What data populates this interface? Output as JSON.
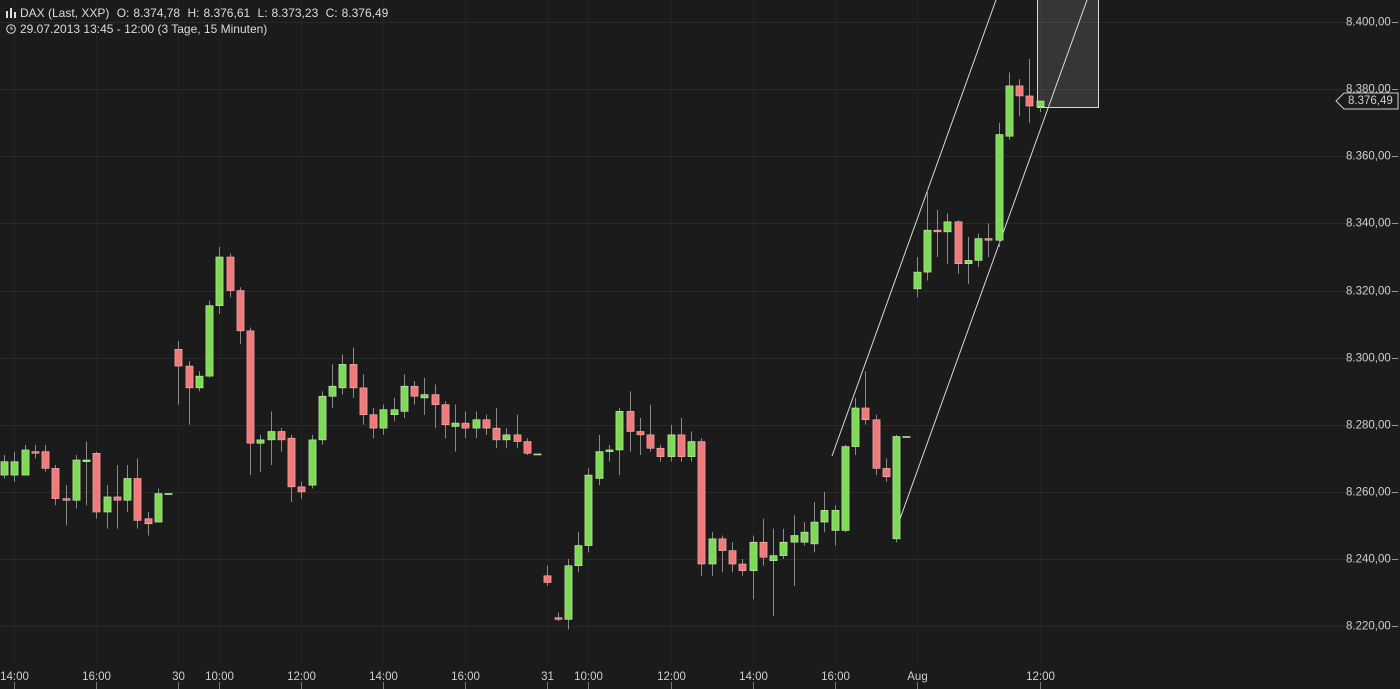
{
  "chart_data": {
    "type": "candlestick",
    "title": "DAX (Last, XXP)",
    "ohlc": [
      {
        "label": "O:",
        "text": "8.374,78"
      },
      {
        "label": "H:",
        "text": "8.376,61"
      },
      {
        "label": "L:",
        "text": "8.373,23"
      },
      {
        "label": "C:",
        "text": "8.376,49"
      }
    ],
    "subtitle": "29.07.2013 13:45 - 12:00 (3 Tage, 15 Minuten)",
    "up_color": "#7ed957",
    "down_color": "#f07a7a",
    "grid": true,
    "ylim": [
      8208.7,
      8406.6
    ],
    "yticks": [
      {
        "value": 8220,
        "label": "8.220,00"
      },
      {
        "value": 8240,
        "label": "8.240,00"
      },
      {
        "value": 8260,
        "label": "8.260,00"
      },
      {
        "value": 8280,
        "label": "8.280,00"
      },
      {
        "value": 8300,
        "label": "8.300,00"
      },
      {
        "value": 8320,
        "label": "8.320,00"
      },
      {
        "value": 8340,
        "label": "8.340,00"
      },
      {
        "value": 8360,
        "label": "8.360,00"
      },
      {
        "value": 8380,
        "label": "8.380,00"
      },
      {
        "value": 8400,
        "label": "8.400,00"
      }
    ],
    "xlim": [
      -0.4,
      130.3
    ],
    "xticks": [
      {
        "value": 1,
        "label": "14:00"
      },
      {
        "value": 9,
        "label": "16:00"
      },
      {
        "value": 17,
        "label": "30"
      },
      {
        "value": 21,
        "label": "10:00"
      },
      {
        "value": 29,
        "label": "12:00"
      },
      {
        "value": 37,
        "label": "14:00"
      },
      {
        "value": 45,
        "label": "16:00"
      },
      {
        "value": 53,
        "label": "31"
      },
      {
        "value": 57,
        "label": "10:00"
      },
      {
        "value": 65,
        "label": "12:00"
      },
      {
        "value": 73,
        "label": "14:00"
      },
      {
        "value": 81,
        "label": "16:00"
      },
      {
        "value": 89,
        "label": "Aug"
      },
      {
        "value": 101,
        "label": "12:00"
      }
    ],
    "open": [
      8265,
      8265,
      8265,
      8272,
      8272,
      8267,
      8258,
      8257.5,
      8269,
      8271.5,
      8254,
      8258.5,
      8257.5,
      8264,
      8252,
      8251,
      8259.5,
      8302.5,
      8297.5,
      8291,
      8294.5,
      8315.5,
      8330,
      8320,
      8308,
      8274.5,
      8275.5,
      8278,
      8276,
      8261.5,
      8262,
      8275.5,
      8288.5,
      8291,
      8298,
      8291,
      8283,
      8279,
      8283,
      8284,
      8291.5,
      8288,
      8289,
      8286,
      8279.5,
      8280.5,
      8279,
      8281.5,
      8279,
      8275.5,
      8277,
      8275,
      8271.3,
      8235,
      8222.5,
      8222,
      8238,
      8244,
      8264,
      8272,
      8272.5,
      8284,
      8278,
      8277,
      8273,
      8270.5,
      8277,
      8270.5,
      8275,
      8238.5,
      8246,
      8242.5,
      8238.5,
      8236.5,
      8245,
      8239.5,
      8241,
      8245,
      8245,
      8244.5,
      8251,
      8248.5,
      8248.5,
      8273.5,
      8285,
      8281.5,
      8267,
      8246,
      8276.5,
      8320.5,
      8325.5,
      8338,
      8337.5,
      8340.5,
      8328,
      8329,
      8335.5,
      8335,
      8366,
      8381,
      8378,
      8374.78
    ],
    "high": [
      8271,
      8272,
      8274,
      8274,
      8274,
      8268,
      8262,
      8271,
      8275,
      8272,
      8262,
      8268,
      8268,
      8270,
      8254,
      8261,
      8259.5,
      8305,
      8299,
      8296,
      8317,
      8333,
      8331,
      8321,
      8309,
      8277,
      8284,
      8279,
      8277,
      8263,
      8277,
      8290,
      8298,
      8301,
      8303,
      8295,
      8285,
      8286,
      8288,
      8295,
      8293,
      8294,
      8292,
      8287,
      8286,
      8284,
      8284,
      8283,
      8285,
      8279,
      8283,
      8276,
      8271.3,
      8238,
      8224,
      8240,
      8248,
      8267,
      8277,
      8274,
      8285,
      8290,
      8282,
      8286,
      8274,
      8280,
      8282,
      8278,
      8276,
      8248,
      8247,
      8245,
      8240,
      8247,
      8252,
      8249,
      8249,
      8253,
      8251,
      8257,
      8260,
      8256,
      8274,
      8288,
      8296,
      8283,
      8270,
      8277,
      8276.5,
      8330,
      8350,
      8344,
      8343,
      8341,
      8336,
      8337,
      8340,
      8370,
      8385,
      8383,
      8389,
      8376.61
    ],
    "low": [
      8264,
      8263,
      8265,
      8270,
      8266,
      8256,
      8250,
      8255,
      8256,
      8252,
      8249,
      8249,
      8254,
      8249,
      8247,
      8251,
      8259.5,
      8286,
      8280,
      8290,
      8294,
      8313,
      8318,
      8304,
      8265,
      8266,
      8268,
      8272,
      8257,
      8258,
      8261,
      8274,
      8285,
      8289,
      8288,
      8280,
      8276,
      8277,
      8281,
      8282,
      8286,
      8283,
      8279,
      8276,
      8272,
      8276,
      8276,
      8277,
      8273,
      8273,
      8273,
      8271,
      8271.3,
      8232,
      8221.5,
      8219,
      8236,
      8242,
      8262,
      8269,
      8265,
      8272,
      8271,
      8272,
      8269,
      8269,
      8269,
      8269,
      8235,
      8235,
      8236,
      8236,
      8235,
      8228,
      8238,
      8223,
      8240,
      8232,
      8244,
      8242,
      8248,
      8244,
      8248,
      8271,
      8280,
      8265,
      8263,
      8245,
      8276.5,
      8318,
      8323,
      8330,
      8328,
      8325,
      8322,
      8327,
      8330,
      8333,
      8365,
      8372,
      8370,
      8373.23
    ],
    "close": [
      8269,
      8269,
      8272.5,
      8271.5,
      8267,
      8258,
      8257.5,
      8269.5,
      8269.5,
      8254,
      8258.5,
      8257.5,
      8264,
      8251.5,
      8250.5,
      8259.5,
      8259.5,
      8297.5,
      8291,
      8294.5,
      8315.5,
      8330,
      8320,
      8308,
      8274.5,
      8275.5,
      8278,
      8275.5,
      8261.5,
      8260,
      8275.5,
      8288.5,
      8291.5,
      8298,
      8291,
      8283,
      8279,
      8284.5,
      8284.5,
      8291.5,
      8288.5,
      8289,
      8286,
      8280,
      8280.5,
      8279,
      8281.5,
      8279,
      8275.5,
      8277,
      8275,
      8271.5,
      8271.3,
      8233,
      8222,
      8238,
      8244,
      8265,
      8272,
      8272.5,
      8284,
      8278,
      8277,
      8273,
      8270.5,
      8277,
      8270.5,
      8275,
      8238.5,
      8246,
      8242.5,
      8238.5,
      8236.5,
      8245,
      8240.5,
      8241,
      8245,
      8247,
      8248,
      8251,
      8254.5,
      8254.5,
      8273.5,
      8285,
      8281.5,
      8267,
      8264.5,
      8276.5,
      8276.5,
      8325.5,
      8338,
      8337.5,
      8340.5,
      8328,
      8329,
      8335.5,
      8335,
      8366.5,
      8381,
      8378,
      8375,
      8376.49
    ]
  }
}
